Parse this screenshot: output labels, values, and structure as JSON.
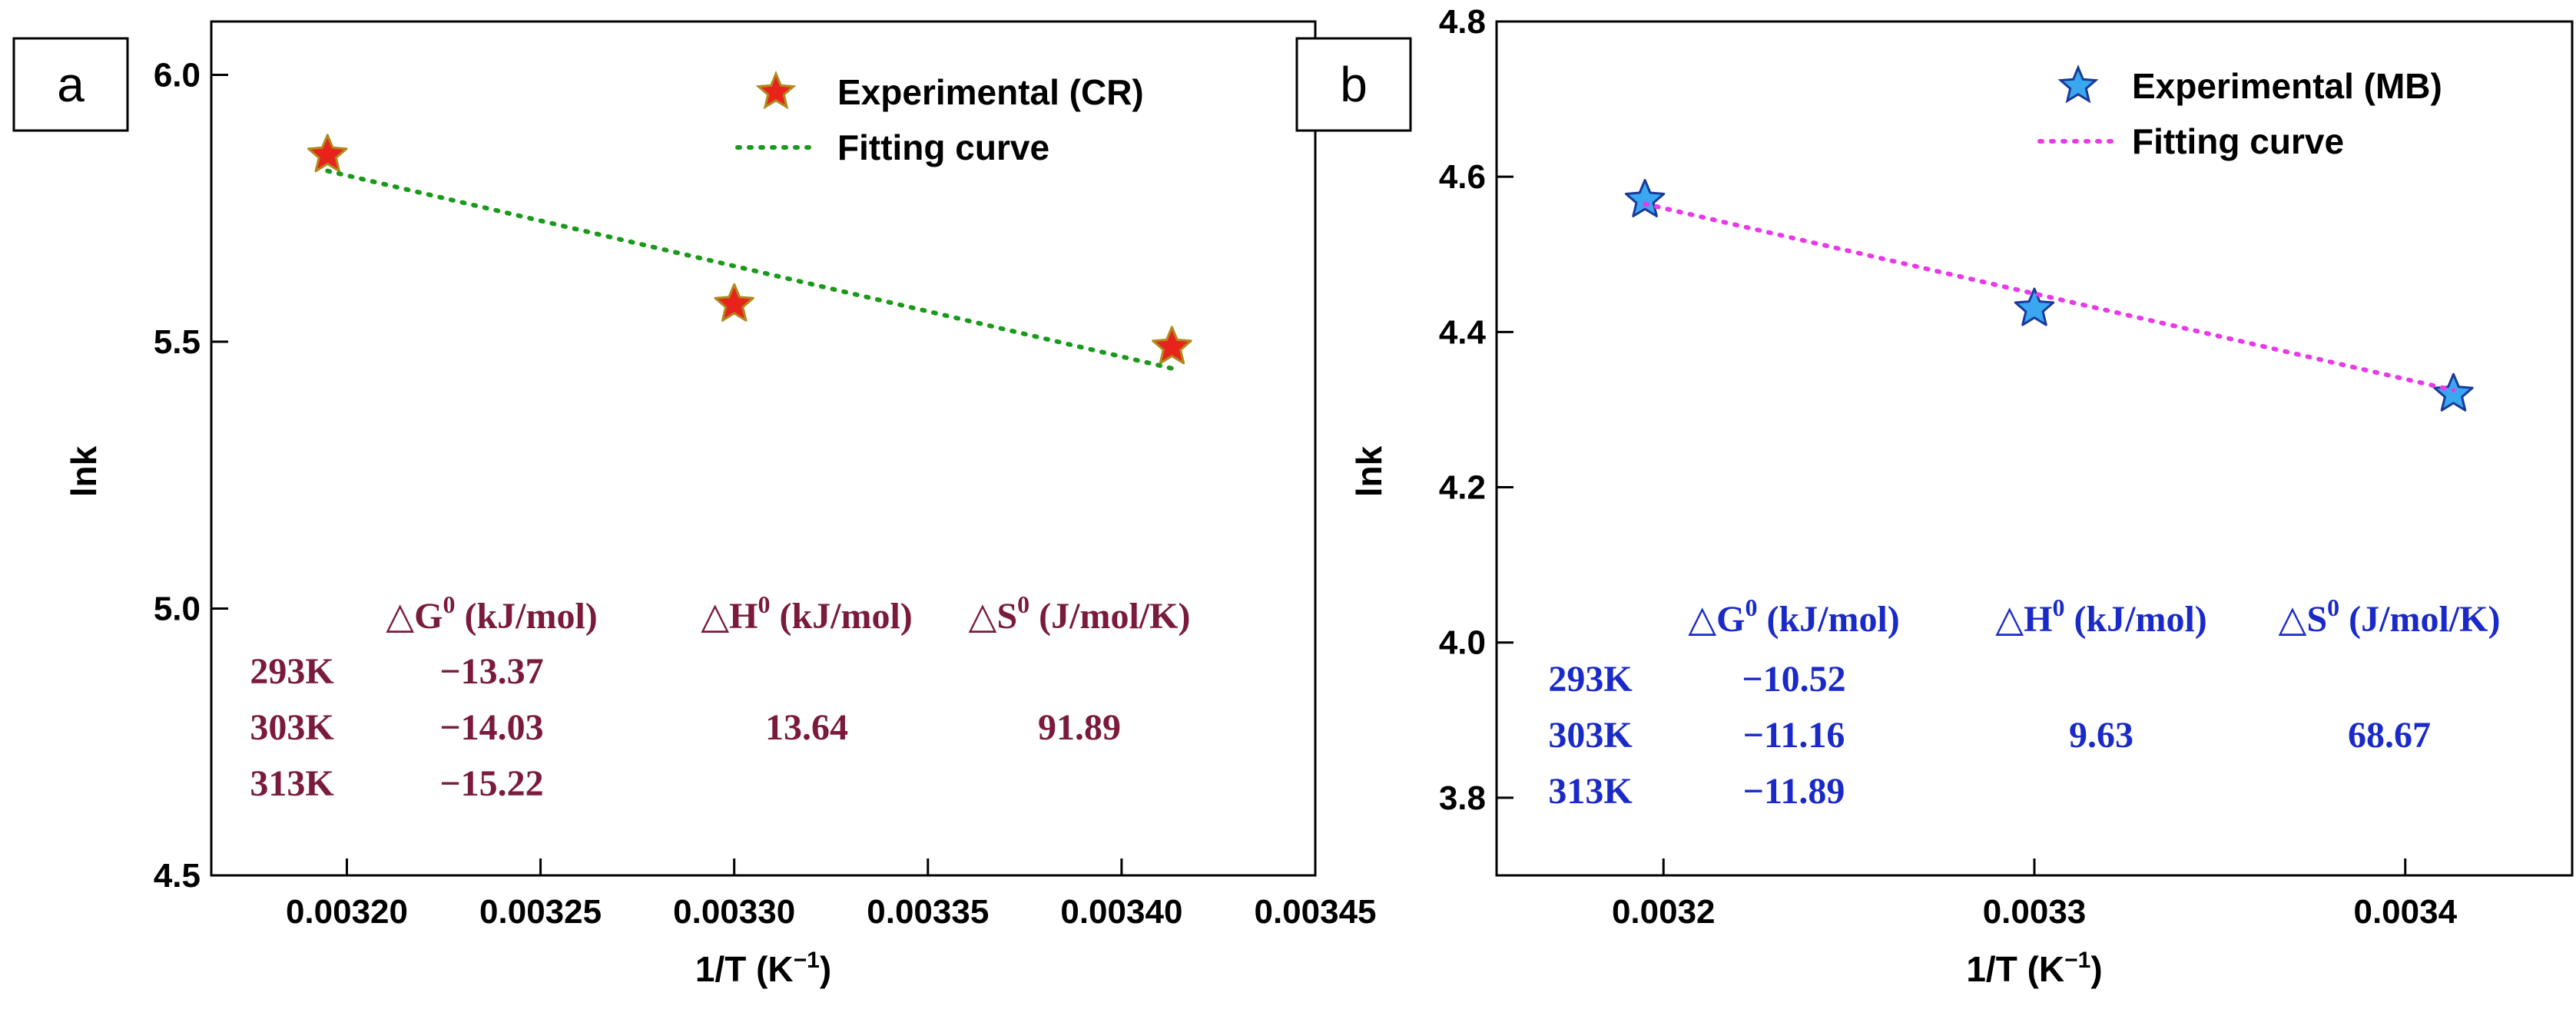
{
  "chart_data": [
    {
      "panel_label": "a",
      "type": "scatter",
      "xlabel_base": "1/T (K",
      "xlabel_sup": "−1",
      "xlabel_close": ")",
      "ylabel": "lnk",
      "xlim": [
        0.003165,
        0.00345
      ],
      "ylim": [
        4.5,
        6.1
      ],
      "xticks": [
        0.0032,
        0.00325,
        0.0033,
        0.00335,
        0.0034,
        0.00345
      ],
      "xtick_labels": [
        "0.00320",
        "0.00325",
        "0.00330",
        "0.00335",
        "0.00340",
        "0.00345"
      ],
      "yticks": [
        4.5,
        5.0,
        5.5,
        6.0
      ],
      "ytick_labels": [
        "4.5",
        "5.0",
        "5.5",
        "6.0"
      ],
      "series": [
        {
          "name": "Experimental (CR)",
          "kind": "points",
          "marker": "star",
          "fill": "#e8231c",
          "stroke": "#b08a1e",
          "x": [
            0.003195,
            0.0033,
            0.003413
          ],
          "y": [
            5.85,
            5.57,
            5.49
          ]
        },
        {
          "name": "Fitting curve",
          "kind": "line",
          "style": "dotted",
          "color": "#1a9a1a",
          "x": [
            0.003195,
            0.003413
          ],
          "y": [
            5.82,
            5.45
          ]
        }
      ],
      "legend_position": "top-right",
      "table": {
        "color": "#7a1a3c",
        "headers": [
          {
            "sym": "△G",
            "sup": "0",
            "unit": " (kJ/mol)"
          },
          {
            "sym": "△H",
            "sup": "0",
            "unit": " (kJ/mol)"
          },
          {
            "sym": "△S",
            "sup": "0",
            "unit": " (J/mol/K)"
          }
        ],
        "rows": [
          {
            "temp": "293K",
            "dG": "−13.37",
            "dH": "",
            "dS": ""
          },
          {
            "temp": "303K",
            "dG": "−14.03",
            "dH": "13.64",
            "dS": "91.89"
          },
          {
            "temp": "313K",
            "dG": "−15.22",
            "dH": "",
            "dS": ""
          }
        ]
      }
    },
    {
      "panel_label": "b",
      "type": "scatter",
      "xlabel_base": "1/T (K",
      "xlabel_sup": "−1",
      "xlabel_close": ")",
      "ylabel": "lnk",
      "xlim": [
        0.003155,
        0.003445
      ],
      "ylim": [
        3.7,
        4.8
      ],
      "xticks": [
        0.0032,
        0.0033,
        0.0034
      ],
      "xtick_labels": [
        "0.0032",
        "0.0033",
        "0.0034"
      ],
      "yticks": [
        3.8,
        4.0,
        4.2,
        4.4,
        4.6,
        4.8
      ],
      "ytick_labels": [
        "3.8",
        "4.0",
        "4.2",
        "4.4",
        "4.6",
        "4.8"
      ],
      "series": [
        {
          "name": "Experimental (MB)",
          "kind": "points",
          "marker": "star",
          "fill": "#3aa8f0",
          "stroke": "#1a3a9a",
          "x": [
            0.003195,
            0.0033,
            0.003413
          ],
          "y": [
            4.57,
            4.43,
            4.32
          ]
        },
        {
          "name": "Fitting curve",
          "kind": "line",
          "style": "dotted",
          "color": "#e83ae8",
          "x": [
            0.003195,
            0.003413
          ],
          "y": [
            4.565,
            4.325
          ]
        }
      ],
      "legend_position": "top-right",
      "table": {
        "color": "#1a2ac8",
        "headers": [
          {
            "sym": "△G",
            "sup": "0",
            "unit": " (kJ/mol)"
          },
          {
            "sym": "△H",
            "sup": "0",
            "unit": " (kJ/mol)"
          },
          {
            "sym": "△S",
            "sup": "0",
            "unit": " (J/mol/K)"
          }
        ],
        "rows": [
          {
            "temp": "293K",
            "dG": "−10.52",
            "dH": "",
            "dS": ""
          },
          {
            "temp": "303K",
            "dG": "−11.16",
            "dH": "9.63",
            "dS": "68.67"
          },
          {
            "temp": "313K",
            "dG": "−11.89",
            "dH": "",
            "dS": ""
          }
        ]
      }
    }
  ]
}
